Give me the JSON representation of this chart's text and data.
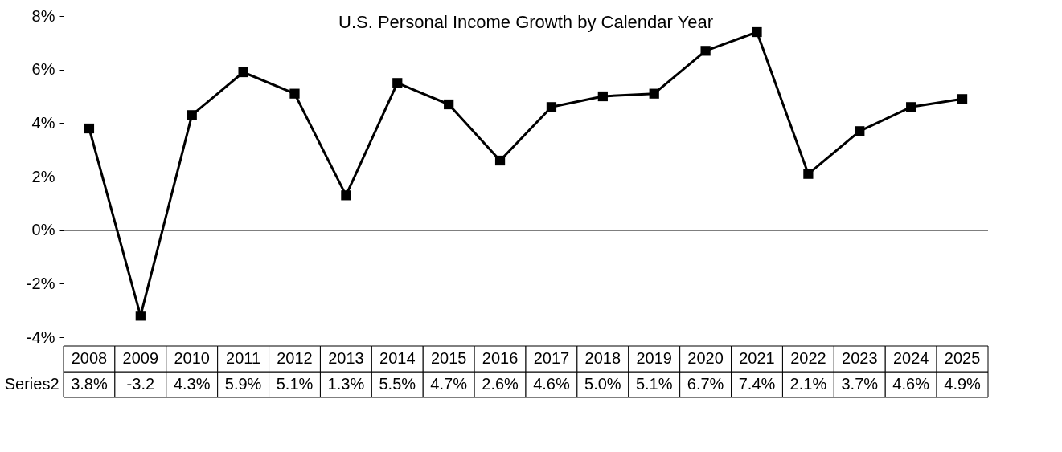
{
  "chart_data": {
    "type": "line",
    "title": "U.S. Personal Income Growth by Calendar Year",
    "categories": [
      "2008",
      "2009",
      "2010",
      "2011",
      "2012",
      "2013",
      "2014",
      "2015",
      "2016",
      "2017",
      "2018",
      "2019",
      "2020",
      "2021",
      "2022",
      "2023",
      "2024",
      "2025"
    ],
    "series": [
      {
        "name": "Series2",
        "color": "#000000",
        "values": [
          3.8,
          -3.2,
          4.3,
          5.9,
          5.1,
          1.3,
          5.5,
          4.7,
          2.6,
          4.6,
          5.0,
          5.1,
          6.7,
          7.4,
          2.1,
          3.7,
          4.6,
          4.9
        ],
        "value_labels": [
          "3.8%",
          "-3.2",
          "4.3%",
          "5.9%",
          "5.1%",
          "1.3%",
          "5.5%",
          "4.7%",
          "2.6%",
          "4.6%",
          "5.0%",
          "5.1%",
          "6.7%",
          "7.4%",
          "2.1%",
          "3.7%",
          "4.6%",
          "4.9%"
        ]
      }
    ],
    "ylim": [
      -4,
      8
    ],
    "yticks": [
      {
        "value": -4,
        "label": "-4%"
      },
      {
        "value": -2,
        "label": "-2%"
      },
      {
        "value": 0,
        "label": "0%"
      },
      {
        "value": 2,
        "label": "2%"
      },
      {
        "value": 4,
        "label": "4%"
      },
      {
        "value": 6,
        "label": "6%"
      },
      {
        "value": 8,
        "label": "8%"
      }
    ],
    "ref_lines": [
      {
        "axis": "y",
        "value": 0,
        "color": "#000000"
      }
    ],
    "grid": false,
    "legend": "bottom left",
    "marker": "square",
    "line_style": "solid"
  }
}
